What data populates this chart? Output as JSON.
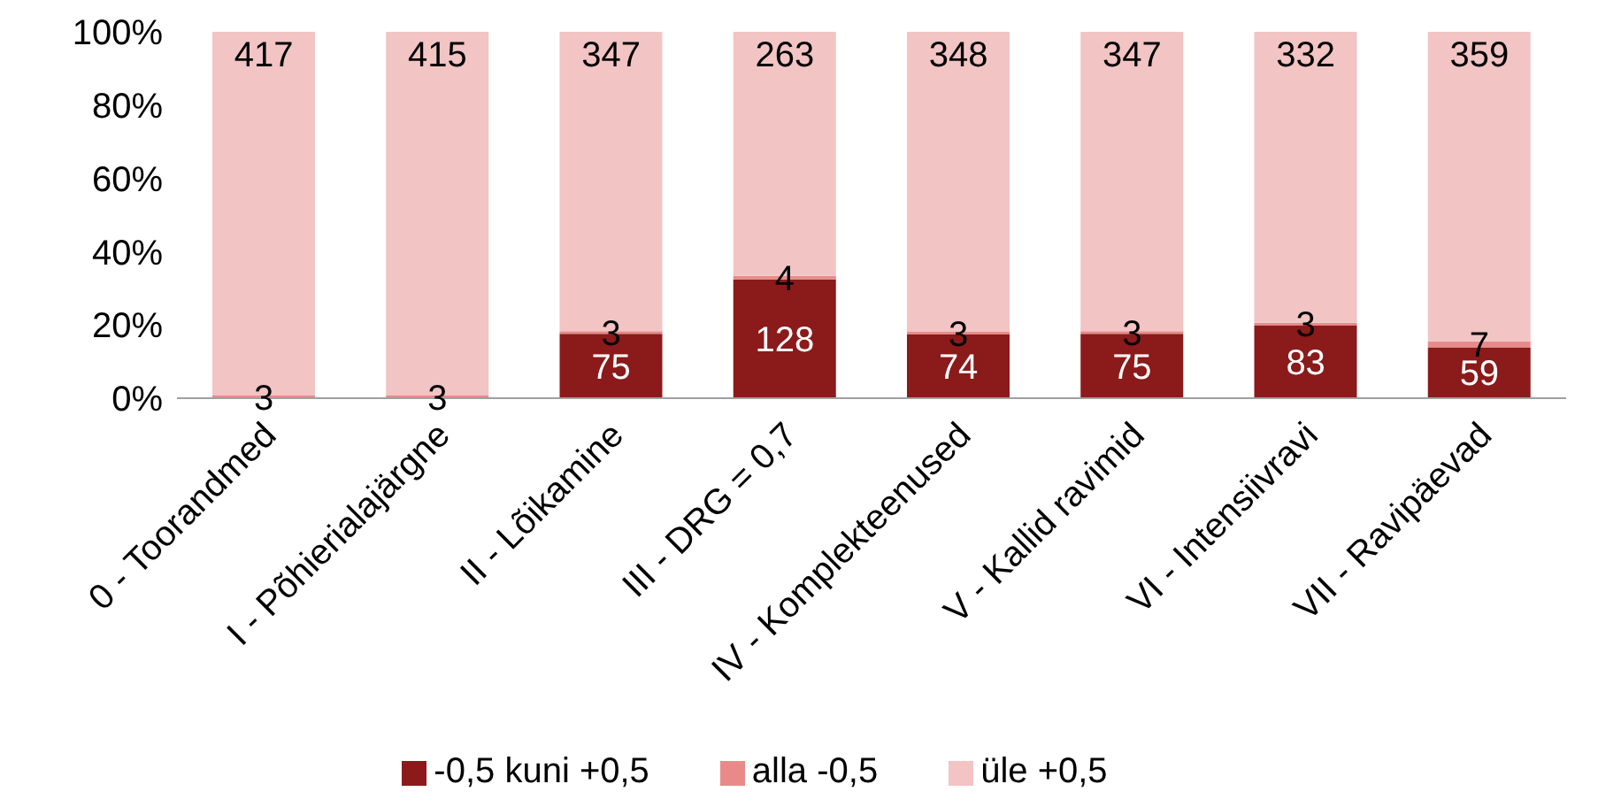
{
  "chart_data": {
    "type": "bar",
    "stacked": true,
    "categories": [
      "0 - Toorandmed",
      "I - Põhierialajärgne",
      "II - Lõikamine",
      "III - DRG = 0,7",
      "IV - Komplekteenused",
      "V - Kallid ravimid",
      "VI - Intensiivravi",
      "VII - Ravipäevad"
    ],
    "series": [
      {
        "name": "-0,5 kuni +0,5",
        "color": "#8b1a1a",
        "values": [
          0,
          0,
          17.6,
          32.4,
          17.4,
          17.6,
          19.9,
          13.9
        ]
      },
      {
        "name": "alla -0,5",
        "color": "#e88a8a",
        "values": [
          0.7,
          0.7,
          0.7,
          1.0,
          0.7,
          0.7,
          0.7,
          1.6
        ]
      },
      {
        "name": "üle +0,5",
        "color": "#f2c4c4",
        "values": [
          99.3,
          99.3,
          81.7,
          66.6,
          81.9,
          81.7,
          79.4,
          84.5
        ]
      }
    ],
    "ylim": [
      0,
      100
    ],
    "yticks": [
      {
        "value": 0,
        "label": "0%"
      },
      {
        "value": 20,
        "label": "20%"
      },
      {
        "value": 40,
        "label": "40%"
      },
      {
        "value": 60,
        "label": "60%"
      },
      {
        "value": 80,
        "label": "80%"
      },
      {
        "value": 100,
        "label": "100%"
      }
    ],
    "annotations": [
      {
        "text": "75",
        "x": "II - Lõikamine",
        "y": 17.6
      },
      {
        "text": "128",
        "x": "III - DRG = 0,7",
        "y": 32.4
      },
      {
        "text": "74",
        "x": "IV - Komplekteenused",
        "y": 17.4
      },
      {
        "text": "75",
        "x": "V - Kallid ravimid",
        "y": 17.6
      },
      {
        "text": "83",
        "x": "VI - Intensiivravi",
        "y": 19.9
      },
      {
        "text": "59",
        "x": "VII - Ravipäevad",
        "y": 13.9
      },
      {
        "text": "3",
        "x": "0 - Toorandmed",
        "y": 0.7
      },
      {
        "text": "3",
        "x": "I - Põhierialajärgne",
        "y": 0.7
      },
      {
        "text": "3",
        "x": "II - Lõikamine",
        "y": 18.3
      },
      {
        "text": "4",
        "x": "III - DRG = 0,7",
        "y": 33.4
      },
      {
        "text": "3",
        "x": "IV - Komplekteenused",
        "y": 18.1
      },
      {
        "text": "3",
        "x": "V - Kallid ravimid",
        "y": 18.3
      },
      {
        "text": "3",
        "x": "VI - Intensiivravi",
        "y": 20.6
      },
      {
        "text": "7",
        "x": "VII - Ravipäevad",
        "y": 15.5
      },
      {
        "text": "417",
        "x": "0 - Toorandmed",
        "y": 100
      },
      {
        "text": "415",
        "x": "I - Põhierialajärgne",
        "y": 100
      },
      {
        "text": "347",
        "x": "II - Lõikamine",
        "y": 100
      },
      {
        "text": "263",
        "x": "III - DRG = 0,7",
        "y": 100
      },
      {
        "text": "348",
        "x": "IV - Komplekteenused",
        "y": 100
      },
      {
        "text": "347",
        "x": "V - Kallid ravimid",
        "y": 100
      },
      {
        "text": "332",
        "x": "VI - Intensiivravi",
        "y": 100
      },
      {
        "text": "359",
        "x": "VII - Ravipäevad",
        "y": 100
      }
    ],
    "legend": "bottom",
    "grid": false
  }
}
